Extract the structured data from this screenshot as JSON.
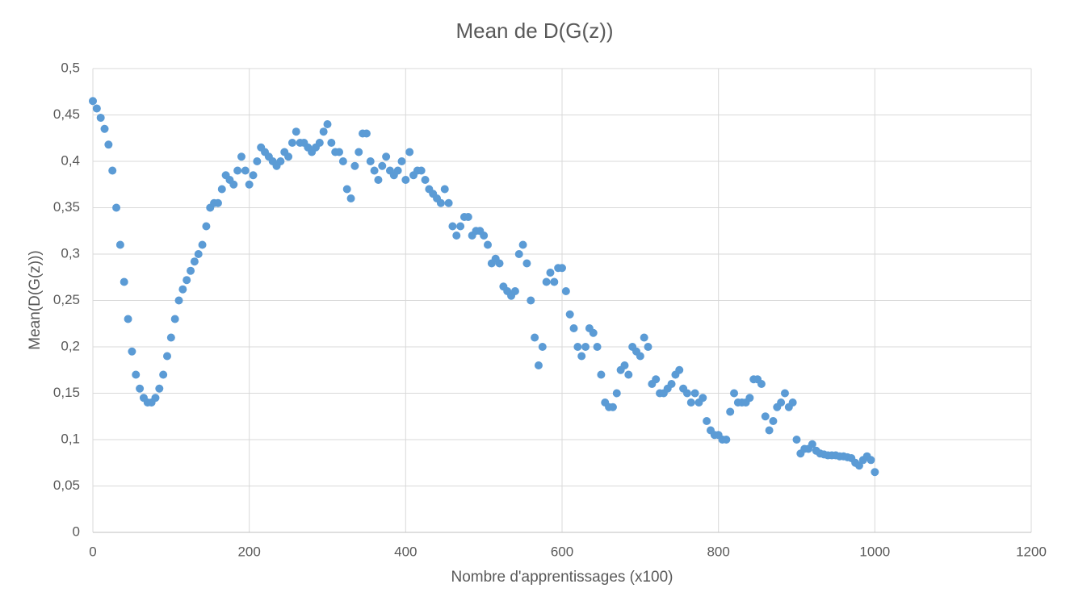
{
  "chart_data": {
    "type": "scatter",
    "title": "Mean de D(G(z))",
    "x_label": "Nombre d'apprentissages (x100)",
    "y_label": "Mean(D(G(z)))",
    "color": "#5b9bd5",
    "grid": true,
    "xlim": [
      0,
      1200
    ],
    "xticks": [
      0,
      200,
      400,
      600,
      800,
      1000,
      1200
    ],
    "ylim": [
      0,
      0.5
    ],
    "yticks": [
      0,
      {
        "value": 0.05,
        "label": "0,05"
      },
      {
        "value": 0.1,
        "label": "0,1"
      },
      {
        "value": 0.15,
        "label": "0,15"
      },
      {
        "value": 0.2,
        "label": "0,2"
      },
      {
        "value": 0.25,
        "label": "0,25"
      },
      {
        "value": 0.3,
        "label": "0,3"
      },
      {
        "value": 0.35,
        "label": "0,35"
      },
      {
        "value": 0.4,
        "label": "0,4"
      },
      {
        "value": 0.45,
        "label": "0,45"
      },
      {
        "value": 0.5,
        "label": "0,5"
      }
    ],
    "x": [
      0,
      5,
      10,
      15,
      20,
      25,
      30,
      35,
      40,
      45,
      50,
      55,
      60,
      65,
      70,
      75,
      80,
      85,
      90,
      95,
      100,
      105,
      110,
      115,
      120,
      125,
      130,
      135,
      140,
      145,
      150,
      155,
      160,
      165,
      170,
      175,
      180,
      185,
      190,
      195,
      200,
      205,
      210,
      215,
      220,
      225,
      230,
      235,
      240,
      245,
      250,
      255,
      260,
      265,
      270,
      275,
      280,
      285,
      290,
      295,
      300,
      305,
      310,
      315,
      320,
      325,
      330,
      335,
      340,
      345,
      350,
      355,
      360,
      365,
      370,
      375,
      380,
      385,
      390,
      395,
      400,
      405,
      410,
      415,
      420,
      425,
      430,
      435,
      440,
      445,
      450,
      455,
      460,
      465,
      470,
      475,
      480,
      485,
      490,
      495,
      500,
      505,
      510,
      515,
      520,
      525,
      530,
      535,
      540,
      545,
      550,
      555,
      560,
      565,
      570,
      575,
      580,
      585,
      590,
      595,
      600,
      605,
      610,
      615,
      620,
      625,
      630,
      635,
      640,
      645,
      650,
      655,
      660,
      665,
      670,
      675,
      680,
      685,
      690,
      695,
      700,
      705,
      710,
      715,
      720,
      725,
      730,
      735,
      740,
      745,
      750,
      755,
      760,
      765,
      770,
      775,
      780,
      785,
      790,
      795,
      800,
      805,
      810,
      815,
      820,
      825,
      830,
      835,
      840,
      845,
      850,
      855,
      860,
      865,
      870,
      875,
      880,
      885,
      890,
      895,
      900,
      905,
      910,
      915,
      920,
      925,
      930,
      935,
      940,
      945,
      950,
      955,
      960,
      965,
      970,
      975,
      980,
      985,
      990,
      995,
      1000
    ],
    "values": [
      0.465,
      0.457,
      0.447,
      0.435,
      0.418,
      0.39,
      0.35,
      0.31,
      0.27,
      0.23,
      0.195,
      0.17,
      0.155,
      0.145,
      0.14,
      0.14,
      0.145,
      0.155,
      0.17,
      0.19,
      0.21,
      0.23,
      0.25,
      0.262,
      0.272,
      0.282,
      0.292,
      0.3,
      0.31,
      0.33,
      0.35,
      0.355,
      0.355,
      0.37,
      0.385,
      0.38,
      0.375,
      0.39,
      0.405,
      0.39,
      0.375,
      0.385,
      0.4,
      0.415,
      0.41,
      0.405,
      0.4,
      0.395,
      0.4,
      0.41,
      0.405,
      0.42,
      0.432,
      0.42,
      0.42,
      0.415,
      0.41,
      0.415,
      0.42,
      0.432,
      0.44,
      0.42,
      0.41,
      0.41,
      0.4,
      0.37,
      0.36,
      0.395,
      0.41,
      0.43,
      0.43,
      0.4,
      0.39,
      0.38,
      0.395,
      0.405,
      0.39,
      0.385,
      0.39,
      0.4,
      0.38,
      0.41,
      0.385,
      0.39,
      0.39,
      0.38,
      0.37,
      0.365,
      0.36,
      0.355,
      0.37,
      0.355,
      0.33,
      0.32,
      0.33,
      0.34,
      0.34,
      0.32,
      0.325,
      0.325,
      0.32,
      0.31,
      0.29,
      0.295,
      0.29,
      0.265,
      0.26,
      0.255,
      0.26,
      0.3,
      0.31,
      0.29,
      0.25,
      0.21,
      0.18,
      0.2,
      0.27,
      0.28,
      0.27,
      0.285,
      0.285,
      0.26,
      0.235,
      0.22,
      0.2,
      0.19,
      0.2,
      0.22,
      0.215,
      0.2,
      0.17,
      0.14,
      0.135,
      0.135,
      0.15,
      0.175,
      0.18,
      0.17,
      0.2,
      0.195,
      0.19,
      0.21,
      0.2,
      0.16,
      0.165,
      0.15,
      0.15,
      0.155,
      0.16,
      0.17,
      0.175,
      0.155,
      0.15,
      0.14,
      0.15,
      0.14,
      0.145,
      0.12,
      0.11,
      0.105,
      0.105,
      0.1,
      0.1,
      0.13,
      0.15,
      0.14,
      0.14,
      0.14,
      0.145,
      0.165,
      0.165,
      0.16,
      0.125,
      0.11,
      0.12,
      0.135,
      0.14,
      0.15,
      0.135,
      0.14,
      0.1,
      0.085,
      0.09,
      0.09,
      0.095,
      0.088,
      0.085,
      0.084,
      0.083,
      0.083,
      0.083,
      0.082,
      0.082,
      0.081,
      0.08,
      0.075,
      0.072,
      0.078,
      0.082,
      0.078,
      0.065
    ]
  }
}
